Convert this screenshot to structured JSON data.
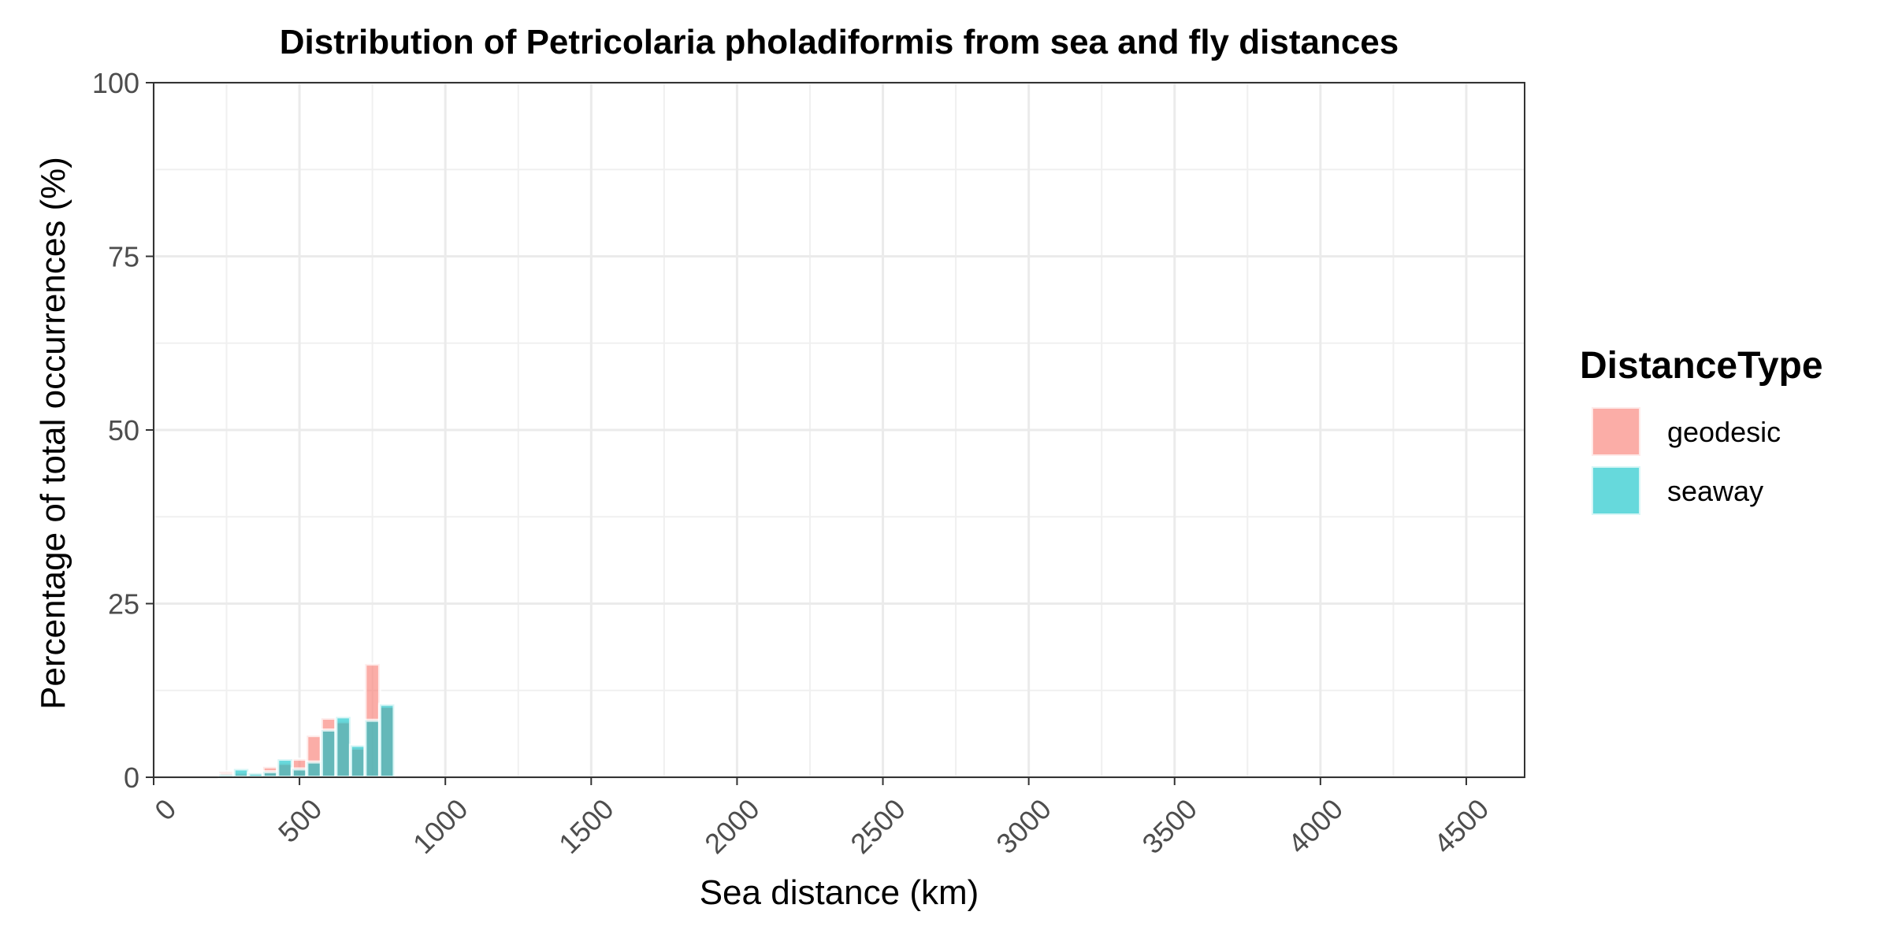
{
  "chart_data": {
    "type": "bar",
    "title": "Distribution of Petricolaria pholadiformis from sea and fly distances",
    "xlabel": "Sea distance (km)",
    "ylabel": "Percentage of total occurrences (%)",
    "xlim": [
      0,
      4700
    ],
    "ylim": [
      0,
      100
    ],
    "x_ticks": [
      "0",
      "500",
      "1000",
      "1500",
      "2000",
      "2500",
      "3000",
      "3500",
      "4000",
      "4500"
    ],
    "x_tick_values": [
      0,
      500,
      1000,
      1500,
      2000,
      2500,
      3000,
      3500,
      4000,
      4500
    ],
    "y_ticks": [
      "0",
      "25",
      "50",
      "75",
      "100"
    ],
    "y_tick_values": [
      0,
      25,
      50,
      75,
      100
    ],
    "bin_width": 50,
    "grid": true,
    "legend": {
      "title": "DistanceType",
      "position": "right",
      "entries": [
        "geodesic",
        "seaway"
      ]
    },
    "series": [
      {
        "name": "geodesic",
        "color": "#F8766D",
        "x": [
          250,
          300,
          350,
          400,
          450,
          500,
          550,
          600,
          650,
          700,
          750,
          800
        ],
        "values": [
          0.8,
          0.6,
          0.4,
          1.5,
          2.0,
          2.6,
          6.0,
          8.5,
          8.0,
          4.2,
          16.3,
          10.2
        ]
      },
      {
        "name": "seaway",
        "color": "#00BFC4",
        "x": [
          250,
          300,
          350,
          400,
          450,
          500,
          550,
          600,
          650,
          700,
          750,
          800
        ],
        "values": [
          0.4,
          1.2,
          0.6,
          0.8,
          2.6,
          1.2,
          2.2,
          6.8,
          8.7,
          4.6,
          8.2,
          10.5
        ]
      }
    ]
  }
}
